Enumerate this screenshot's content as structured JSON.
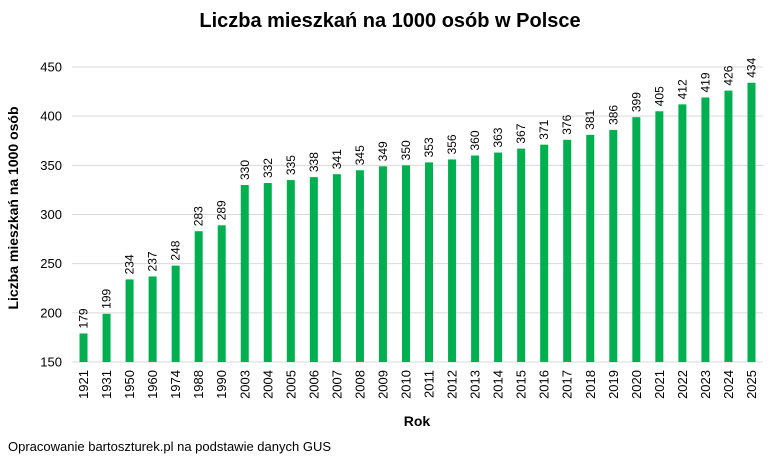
{
  "chart_data": {
    "type": "bar",
    "title": "Liczba mieszkań na 1000 osób w Polsce",
    "xlabel": "Rok",
    "ylabel": "Liczba mieszkań na 1000 osób",
    "categories": [
      "1921",
      "1931",
      "1950",
      "1960",
      "1974",
      "1988",
      "1990",
      "2003",
      "2004",
      "2005",
      "2006",
      "2007",
      "2008",
      "2009",
      "2010",
      "2011",
      "2012",
      "2013",
      "2014",
      "2015",
      "2016",
      "2017",
      "2018",
      "2019",
      "2020",
      "2021",
      "2022",
      "2023",
      "2024",
      "2025"
    ],
    "values": [
      179,
      199,
      234,
      237,
      248,
      283,
      289,
      330,
      332,
      335,
      338,
      341,
      345,
      349,
      350,
      353,
      356,
      360,
      363,
      367,
      371,
      376,
      381,
      386,
      399,
      405,
      412,
      419,
      426,
      434
    ],
    "ylim": [
      150,
      450
    ],
    "yticks": [
      150,
      200,
      250,
      300,
      350,
      400,
      450
    ],
    "grid": true,
    "bar_color": "#00b050",
    "grid_color": "#d9d9d9"
  },
  "source_note": "Opracowanie bartoszturek.pl na podstawie danych GUS"
}
